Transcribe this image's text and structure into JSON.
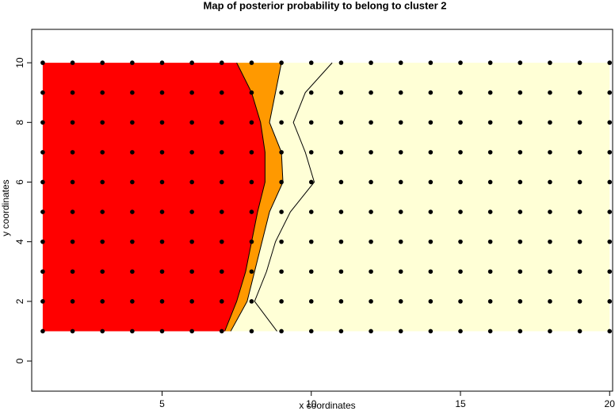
{
  "chart_data": {
    "type": "contour",
    "title": "Map of posterior probability to belong to cluster  2",
    "x_label": "x coordinates",
    "y_label": "y coordinates",
    "xlim": [
      0.63,
      20.1
    ],
    "ylim": [
      -1.01,
      11.12
    ],
    "xticks": [
      5,
      10,
      15,
      20
    ],
    "yticks": [
      0,
      2,
      4,
      6,
      8,
      10
    ],
    "points": {
      "color": "#000000",
      "x": [
        1,
        2,
        3,
        4,
        5,
        6,
        7,
        8,
        9,
        10,
        11,
        12,
        13,
        14,
        15,
        16,
        17,
        18,
        19,
        20
      ],
      "y": [
        1,
        2,
        3,
        4,
        5,
        6,
        7,
        8,
        9,
        10
      ]
    },
    "fill_colors": [
      "#ff0000",
      "#ff9900",
      "#ffffd6"
    ],
    "contours": [
      {
        "x": [
          7.1,
          7.5,
          7.8,
          8.0,
          8.2,
          8.45,
          8.45,
          8.3,
          8.0,
          7.5
        ],
        "y": [
          1,
          2,
          3,
          4,
          5,
          6,
          7,
          8,
          9,
          10
        ]
      },
      {
        "x": [
          7.3,
          7.85,
          8.1,
          8.35,
          8.6,
          9.05,
          9.0,
          8.6,
          8.8,
          9.0
        ],
        "y": [
          1,
          2,
          3,
          4,
          5,
          6,
          7,
          8,
          9,
          10
        ]
      },
      {
        "x": [
          8.85,
          8.1,
          8.5,
          8.8,
          9.3,
          10.1,
          9.8,
          9.4,
          9.8,
          10.7
        ],
        "y": [
          1,
          2,
          3,
          4,
          5,
          6,
          7,
          8,
          9,
          10
        ]
      }
    ]
  }
}
